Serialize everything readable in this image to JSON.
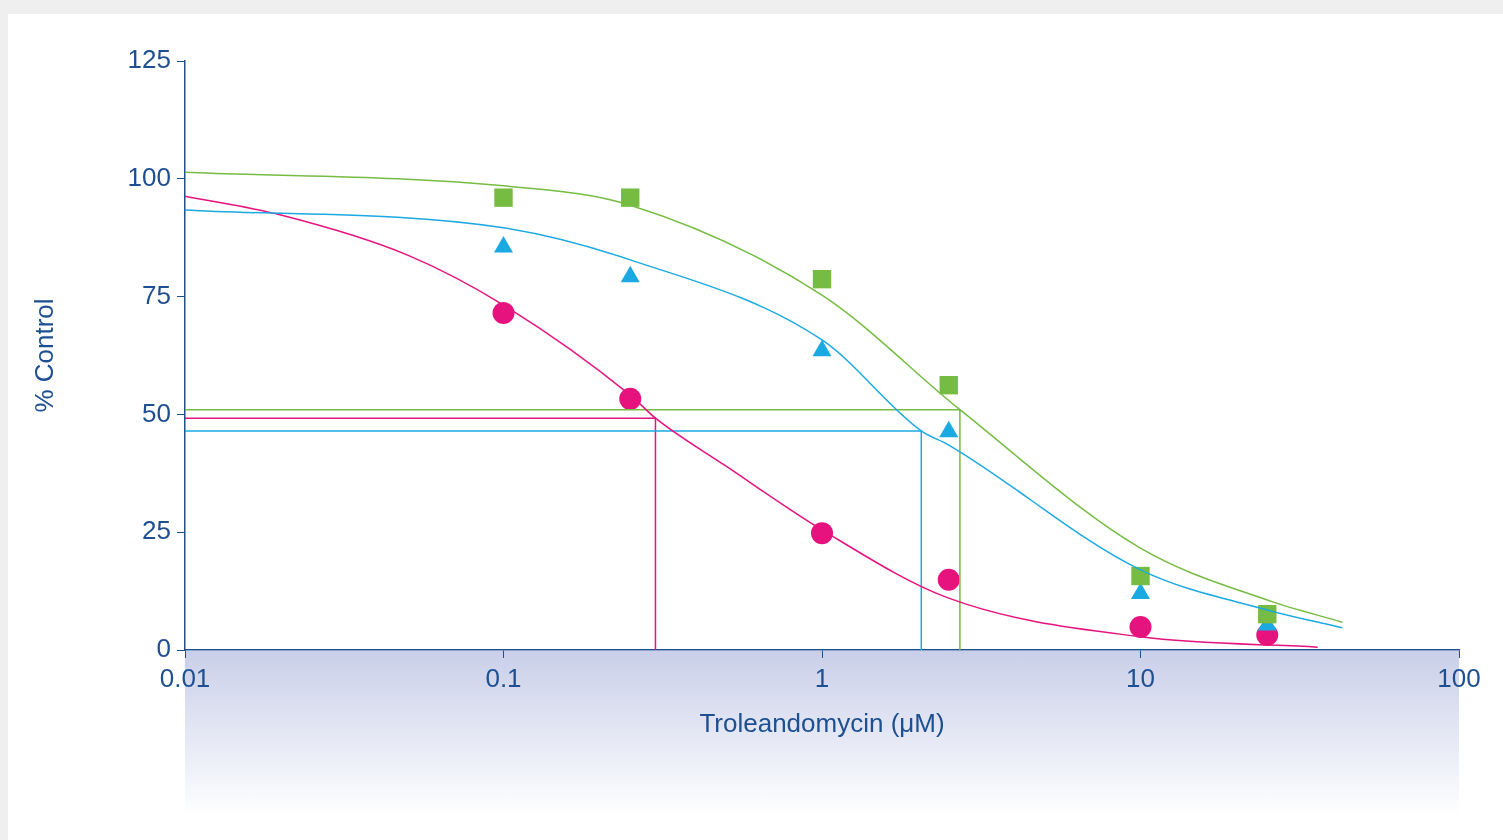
{
  "chart_data": {
    "type": "scatter",
    "xlabel": "Troleandomycin (μM)",
    "ylabel": "% Control",
    "log": "x",
    "grid": false,
    "legend": false,
    "xlim": [
      0.01,
      100
    ],
    "xticks": [
      0.01,
      0.1,
      1,
      10,
      100
    ],
    "ylim": [
      0,
      125
    ],
    "yticks": [
      0,
      25,
      50,
      75,
      100,
      125
    ],
    "series": [
      {
        "type": "line",
        "color": "#76bc43",
        "marker": "none",
        "x": [
          0.01,
          0.1,
          0.25,
          1,
          2.71,
          10,
          25,
          43
        ],
        "values": [
          101.4,
          98.5,
          94.4,
          75.3,
          51,
          21.6,
          10.6,
          5.9
        ]
      },
      {
        "type": "line",
        "color": "#1ba9e1",
        "marker": "none",
        "x": [
          0.01,
          0.1,
          0.25,
          1,
          2.05,
          2.5,
          10,
          25,
          43
        ],
        "values": [
          93.4,
          89.6,
          82.8,
          65.8,
          46.5,
          43.5,
          17,
          8.5,
          4.7
        ]
      },
      {
        "type": "line",
        "color": "#e6137f",
        "marker": "none",
        "x": [
          0.01,
          0.02,
          0.05,
          0.1,
          0.25,
          0.3,
          0.5,
          1,
          2.5,
          10,
          36
        ],
        "values": [
          96.3,
          92.3,
          83.8,
          73.2,
          54.1,
          49.2,
          39,
          25.5,
          11,
          2.8,
          0.6
        ]
      },
      {
        "type": "line",
        "color": "#76bc43",
        "marker": "none",
        "x": [
          0.01,
          2.71,
          2.71
        ],
        "values": [
          51,
          51,
          0
        ]
      },
      {
        "type": "line",
        "color": "#1ba9e1",
        "marker": "none",
        "x": [
          0.01,
          2.05,
          2.05
        ],
        "values": [
          46.5,
          46.5,
          0
        ]
      },
      {
        "type": "line",
        "color": "#e6137f",
        "marker": "none",
        "x": [
          0.01,
          0.3,
          0.3
        ],
        "values": [
          49.2,
          49.2,
          0
        ]
      },
      {
        "type": "scatter",
        "color": "#76bc43",
        "marker": "square",
        "x": [
          0.1,
          0.25,
          1,
          2.5,
          10,
          25
        ],
        "values": [
          96,
          96,
          78.7,
          56.2,
          15.7,
          7.6
        ]
      },
      {
        "type": "scatter",
        "color": "#1ba9e1",
        "marker": "triangle",
        "x": [
          0.1,
          0.25,
          1,
          2.5,
          10,
          25
        ],
        "values": [
          85.5,
          79.2,
          63.5,
          46.3,
          12,
          5.3
        ]
      },
      {
        "type": "scatter",
        "color": "#e6137f",
        "marker": "circle",
        "x": [
          0.1,
          0.25,
          1,
          2.5,
          10,
          25
        ],
        "values": [
          71.5,
          53.3,
          24.8,
          14.9,
          4.9,
          3.2
        ]
      }
    ]
  }
}
